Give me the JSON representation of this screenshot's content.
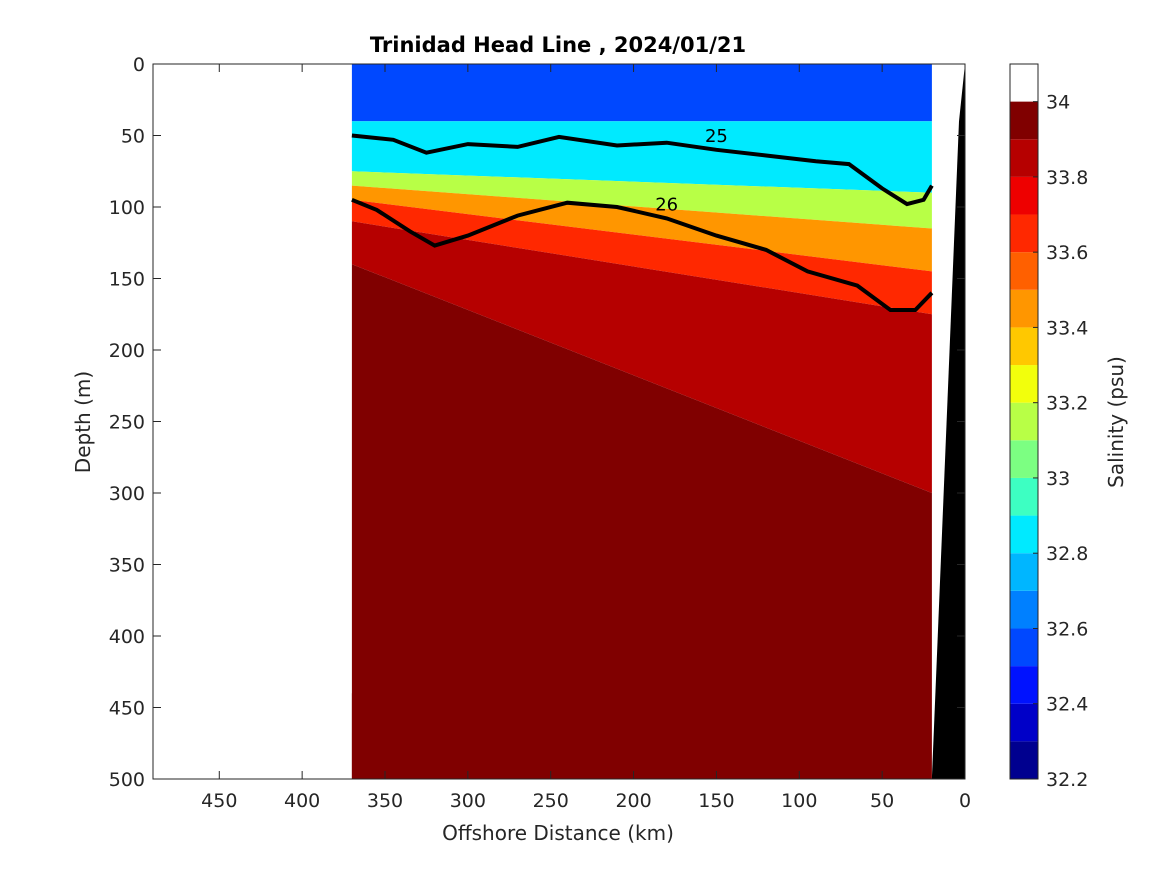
{
  "chart_data": {
    "type": "heatmap",
    "title": "Trinidad Head Line , 2024/01/21",
    "xlabel": "Offshore Distance (km)",
    "ylabel": "Depth (m)",
    "xlim": [
      490,
      0
    ],
    "ylim": [
      500,
      0
    ],
    "x_reversed": true,
    "y_reversed": true,
    "x_ticks": [
      450,
      400,
      350,
      300,
      250,
      200,
      150,
      100,
      50,
      0
    ],
    "y_ticks": [
      0,
      50,
      100,
      150,
      200,
      250,
      300,
      350,
      400,
      450,
      500
    ],
    "grid": false,
    "colorbar": {
      "label": "Salinity (psu)",
      "range": [
        32.2,
        34.1
      ],
      "ticks": [
        32.2,
        32.4,
        32.6,
        32.8,
        33,
        33.2,
        33.4,
        33.6,
        33.8,
        34
      ],
      "levels": [
        32.2,
        32.3,
        32.4,
        32.5,
        32.6,
        32.7,
        32.8,
        32.9,
        33.0,
        33.1,
        33.2,
        33.3,
        33.4,
        33.5,
        33.6,
        33.7,
        33.8,
        33.9,
        34.0,
        34.1
      ],
      "colors": [
        "#00008f",
        "#0000c8",
        "#0012ff",
        "#0048ff",
        "#0080ff",
        "#00b6ff",
        "#00eaff",
        "#3dffc2",
        "#7cff82",
        "#b8ff46",
        "#f2ff0c",
        "#ffc800",
        "#ff9600",
        "#ff6000",
        "#ff2800",
        "#ee0000",
        "#b60000",
        "#800000"
      ]
    },
    "data_extent_km": [
      370,
      20
    ],
    "coastline_color": "#000000",
    "density_contours": [
      {
        "label": "25",
        "bold": true,
        "points": [
          [
            370,
            50
          ],
          [
            345,
            53
          ],
          [
            325,
            62
          ],
          [
            300,
            56
          ],
          [
            270,
            58
          ],
          [
            245,
            51
          ],
          [
            210,
            57
          ],
          [
            180,
            55
          ],
          [
            150,
            60
          ],
          [
            120,
            64
          ],
          [
            90,
            68
          ],
          [
            70,
            70
          ],
          [
            50,
            87
          ],
          [
            35,
            98
          ],
          [
            25,
            95
          ],
          [
            20,
            85
          ]
        ]
      },
      {
        "label": "26",
        "bold": true,
        "points": [
          [
            370,
            95
          ],
          [
            355,
            102
          ],
          [
            335,
            117
          ],
          [
            320,
            127
          ],
          [
            300,
            120
          ],
          [
            270,
            106
          ],
          [
            240,
            97
          ],
          [
            210,
            100
          ],
          [
            180,
            108
          ],
          [
            150,
            120
          ],
          [
            120,
            130
          ],
          [
            95,
            145
          ],
          [
            65,
            155
          ],
          [
            45,
            172
          ],
          [
            30,
            172
          ],
          [
            20,
            160
          ]
        ]
      }
    ],
    "salinity_bands": [
      {
        "salinity": 32.55,
        "depths": [
          [
            370,
            0
          ],
          [
            20,
            0
          ],
          [
            20,
            40
          ],
          [
            370,
            40
          ]
        ]
      },
      {
        "salinity": 32.85,
        "depths": [
          [
            370,
            40
          ],
          [
            20,
            40
          ],
          [
            20,
            90
          ],
          [
            370,
            75
          ]
        ]
      },
      {
        "salinity": 33.15,
        "depths": [
          [
            370,
            75
          ],
          [
            20,
            90
          ],
          [
            20,
            115
          ],
          [
            370,
            85
          ]
        ]
      },
      {
        "salinity": 33.45,
        "depths": [
          [
            370,
            85
          ],
          [
            20,
            115
          ],
          [
            20,
            145
          ],
          [
            370,
            95
          ]
        ]
      },
      {
        "salinity": 33.65,
        "depths": [
          [
            370,
            95
          ],
          [
            20,
            145
          ],
          [
            20,
            175
          ],
          [
            370,
            110
          ]
        ]
      },
      {
        "salinity": 33.85,
        "depths": [
          [
            370,
            110
          ],
          [
            20,
            175
          ],
          [
            20,
            300
          ],
          [
            370,
            140
          ]
        ]
      },
      {
        "salinity": 33.95,
        "depths": [
          [
            370,
            140
          ],
          [
            20,
            300
          ],
          [
            20,
            500
          ],
          [
            370,
            500
          ]
        ]
      },
      {
        "salinity": 34.05,
        "depths": [
          [
            370,
            440
          ],
          [
            330,
            500
          ],
          [
            370,
            500
          ]
        ]
      }
    ]
  }
}
